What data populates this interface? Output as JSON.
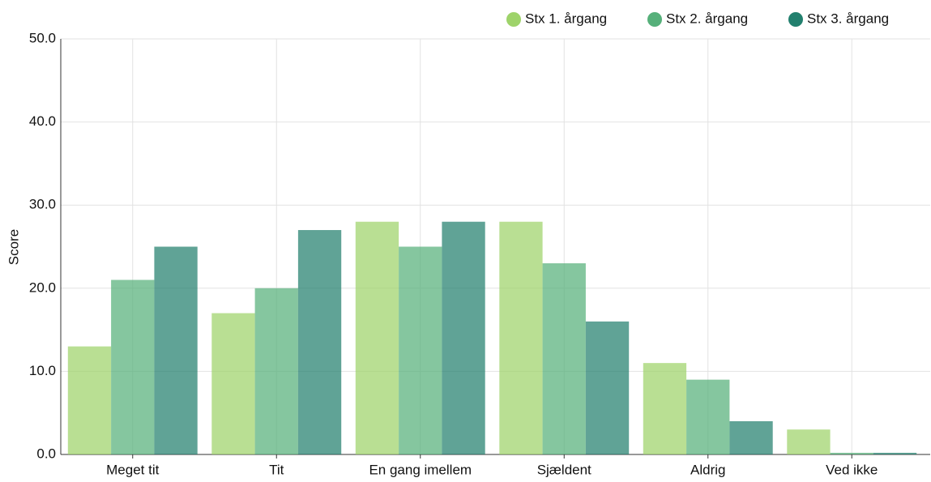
{
  "chart_data": {
    "type": "bar",
    "y_label": "Score",
    "categories": [
      "Meget tit",
      "Tit",
      "En gang imellem",
      "Sjældent",
      "Aldrig",
      "Ved ikke"
    ],
    "series": [
      {
        "name": "Stx 1. årgang",
        "color": "#9ed36a",
        "values": [
          13,
          17,
          28,
          28,
          11,
          3
        ]
      },
      {
        "name": "Stx 2. årgang",
        "color": "#56b07a",
        "values": [
          21,
          20,
          25,
          23,
          9,
          0.2
        ]
      },
      {
        "name": "Stx 3. årgang",
        "color": "#22806e",
        "values": [
          25,
          27,
          28,
          16,
          4,
          0.2
        ]
      }
    ],
    "ylim": [
      0,
      50
    ],
    "yticks": [
      {
        "value": 0,
        "label": "0.0"
      },
      {
        "value": 10,
        "label": "10.0"
      },
      {
        "value": 20,
        "label": "20.0"
      },
      {
        "value": 30,
        "label": "30.0"
      },
      {
        "value": 40,
        "label": "40.0"
      },
      {
        "value": 50,
        "label": "50.0"
      }
    ],
    "grid": true,
    "legend": "top-right"
  }
}
